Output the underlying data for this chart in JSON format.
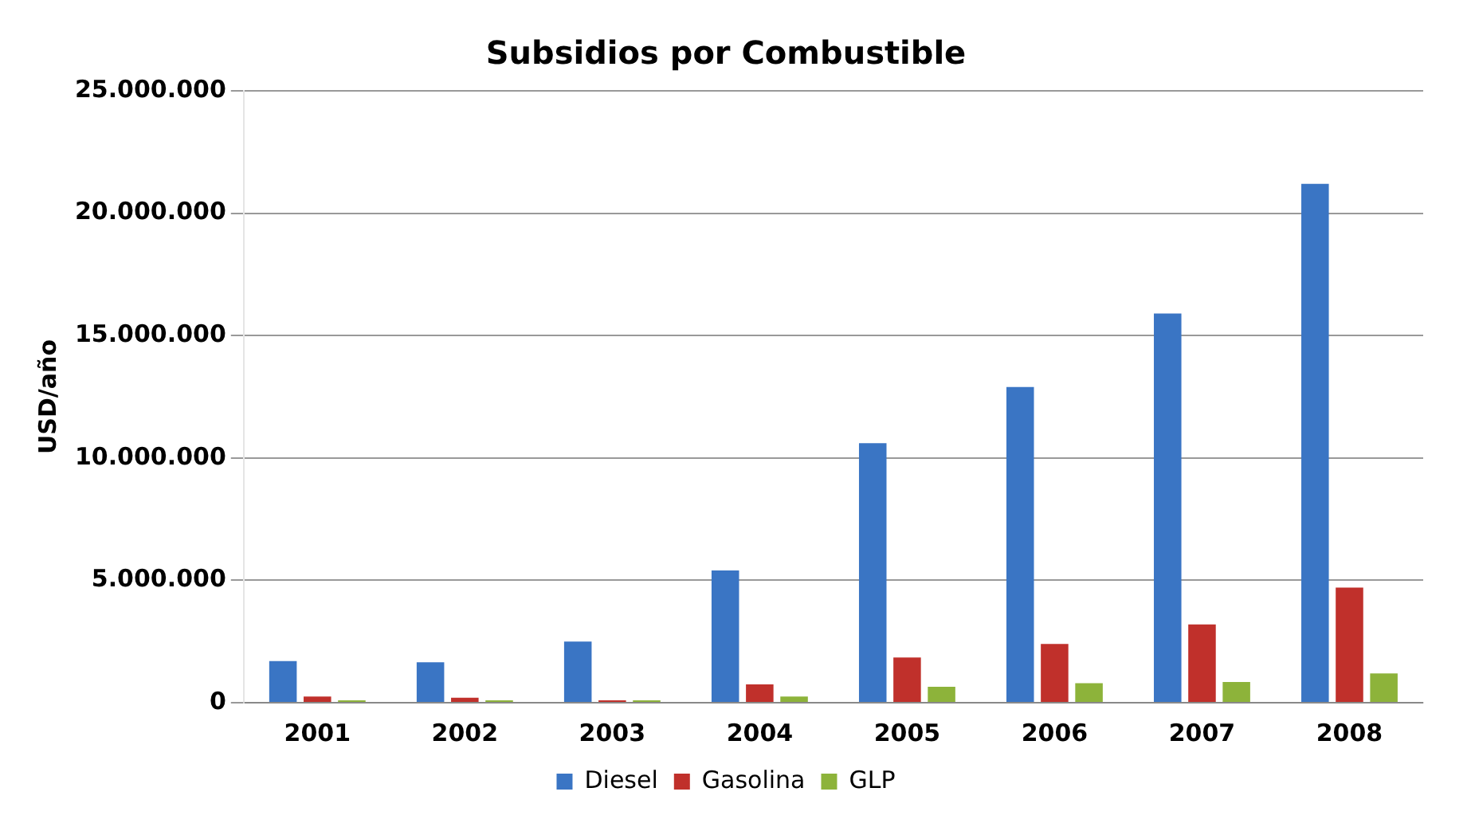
{
  "chart_data": {
    "type": "bar",
    "title": "Subsidios por Combustible",
    "ylabel": "USD/año",
    "categories": [
      "2001",
      "2002",
      "2003",
      "2004",
      "2005",
      "2006",
      "2007",
      "2008"
    ],
    "series": [
      {
        "name": "Diesel",
        "color": "#3a75c4",
        "values": [
          1700000,
          1650000,
          2500000,
          5400000,
          10600000,
          12900000,
          15900000,
          21200000
        ]
      },
      {
        "name": "Gasolina",
        "color": "#c0302b",
        "values": [
          250000,
          200000,
          100000,
          750000,
          1850000,
          2400000,
          3200000,
          4700000
        ]
      },
      {
        "name": "GLP",
        "color": "#8db33a",
        "values": [
          100000,
          100000,
          100000,
          250000,
          650000,
          800000,
          850000,
          1200000
        ]
      }
    ],
    "ylim": [
      0,
      25000000
    ],
    "yticks": [
      0,
      {
        "value": 5000000,
        "label": "5.000.000"
      },
      {
        "value": 10000000,
        "label": "10.000.000"
      },
      {
        "value": 15000000,
        "label": "15.000.000"
      },
      {
        "value": 20000000,
        "label": "20.000.000"
      },
      {
        "value": 25000000,
        "label": "25.000.000"
      }
    ],
    "grid": "y",
    "legend": "bottom"
  }
}
